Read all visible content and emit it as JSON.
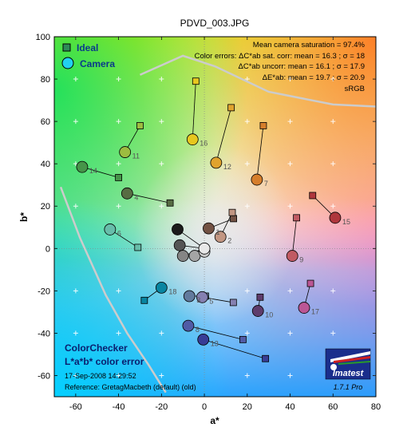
{
  "chart_data": {
    "type": "scatter",
    "title": "PDVD_003.JPG",
    "xlabel": "a*",
    "ylabel": "b*",
    "xlim": [
      -70,
      80
    ],
    "ylim": [
      -70,
      100
    ],
    "xticks": [
      -60,
      -40,
      -20,
      0,
      20,
      40,
      60,
      80
    ],
    "yticks": [
      -60,
      -40,
      -20,
      0,
      20,
      40,
      60,
      80,
      100
    ],
    "grid_marks": "plus",
    "legend": {
      "placement": "top-left",
      "items": [
        {
          "label": "Ideal",
          "marker": "square"
        },
        {
          "label": "Camera",
          "marker": "circle"
        }
      ]
    },
    "info_lines": [
      "Mean camera saturation = 97.4%",
      "Color errors:  ΔC*ab sat. corr:  mean = 16.3 ;  σ = 18",
      "ΔC*ab uncorr:  mean = 16.1 ;  σ = 17.9",
      "ΔE*ab:  mean = 19.7 ;  σ = 20.9",
      "sRGB"
    ],
    "patches": [
      {
        "label": "1",
        "ideal": [
          13.6,
          14.1
        ],
        "camera": [
          2.0,
          9.5
        ],
        "color": "#735244"
      },
      {
        "label": "2",
        "ideal": [
          13.0,
          17.0
        ],
        "camera": [
          7.5,
          5.5
        ],
        "color": "#c29682"
      },
      {
        "label": "3",
        "ideal": [
          0.5,
          -22.5
        ],
        "camera": [
          -7.0,
          -22.5
        ],
        "color": "#627a9d"
      },
      {
        "label": "4",
        "ideal": [
          -16.0,
          21.5
        ],
        "camera": [
          -36.0,
          26.0
        ],
        "color": "#576c43"
      },
      {
        "label": "5",
        "ideal": [
          13.5,
          -25.5
        ],
        "camera": [
          -1.0,
          -23.0
        ],
        "color": "#8580b1"
      },
      {
        "label": "6",
        "ideal": [
          -31.0,
          0.5
        ],
        "camera": [
          -44.0,
          9.0
        ],
        "color": "#67bdaa"
      },
      {
        "label": "7",
        "ideal": [
          27.5,
          58.0
        ],
        "camera": [
          24.5,
          32.5
        ],
        "color": "#d67e2c"
      },
      {
        "label": "8",
        "ideal": [
          18.0,
          -43.0
        ],
        "camera": [
          -7.5,
          -36.5
        ],
        "color": "#505ba6"
      },
      {
        "label": "9",
        "ideal": [
          43.0,
          14.5
        ],
        "camera": [
          41.0,
          -3.5
        ],
        "color": "#c15a63"
      },
      {
        "label": "10",
        "ideal": [
          26.0,
          -23.0
        ],
        "camera": [
          25.0,
          -29.5
        ],
        "color": "#5e3c6c"
      },
      {
        "label": "11",
        "ideal": [
          -30.0,
          58.0
        ],
        "camera": [
          -37.0,
          45.5
        ],
        "color": "#9dbc40"
      },
      {
        "label": "12",
        "ideal": [
          12.5,
          66.5
        ],
        "camera": [
          5.5,
          40.5
        ],
        "color": "#e0a32e"
      },
      {
        "label": "13",
        "ideal": [
          28.5,
          -52.0
        ],
        "camera": [
          -0.5,
          -43.0
        ],
        "color": "#383d96"
      },
      {
        "label": "14",
        "ideal": [
          -40.0,
          33.5
        ],
        "camera": [
          -57.0,
          38.5
        ],
        "color": "#469449"
      },
      {
        "label": "15",
        "ideal": [
          50.5,
          25.0
        ],
        "camera": [
          61.0,
          14.5
        ],
        "color": "#af363c"
      },
      {
        "label": "16",
        "ideal": [
          -4.0,
          79.0
        ],
        "camera": [
          -5.5,
          51.5
        ],
        "color": "#e7c71f"
      },
      {
        "label": "17",
        "ideal": [
          49.5,
          -16.5
        ],
        "camera": [
          46.5,
          -28.0
        ],
        "color": "#bb5695"
      },
      {
        "label": "18",
        "ideal": [
          -28.0,
          -24.5
        ],
        "camera": [
          -20.0,
          -18.5
        ],
        "color": "#0885a1"
      },
      {
        "label": "",
        "ideal": [
          0.0,
          0.0
        ],
        "camera": [
          -12.5,
          9.0
        ],
        "color": "#1b1b1b"
      },
      {
        "label": "",
        "ideal": [
          0.0,
          0.0
        ],
        "camera": [
          -11.5,
          1.5
        ],
        "color": "#555555"
      },
      {
        "label": "",
        "ideal": [
          0.0,
          0.0
        ],
        "camera": [
          -10.0,
          -3.5
        ],
        "color": "#858585"
      },
      {
        "label": "",
        "ideal": [
          0.0,
          0.0
        ],
        "camera": [
          -4.5,
          -3.5
        ],
        "color": "#a5a5a5"
      },
      {
        "label": "",
        "ideal": [
          0.0,
          0.0
        ],
        "camera": [
          0.0,
          -1.5
        ],
        "color": "#c8c8c8"
      },
      {
        "label": "",
        "ideal": [
          0.0,
          0.0
        ],
        "camera": [
          0.0,
          0.0
        ],
        "color": "#e8e8e8"
      }
    ],
    "gamut_boundary": [
      [
        -67,
        29
      ],
      [
        -58,
        5
      ],
      [
        -46,
        -22
      ],
      [
        -36,
        -40
      ],
      [
        -26,
        -55
      ],
      [
        -18,
        -68
      ]
    ],
    "gamut_boundary_top": [
      [
        -30,
        82
      ],
      [
        -10,
        91
      ],
      [
        5,
        86
      ],
      [
        30,
        74
      ],
      [
        60,
        68
      ],
      [
        80,
        67
      ]
    ]
  },
  "labels": {
    "colorchecker_title": "ColorChecker",
    "colorchecker_subtitle": "L*a*b* color error",
    "date": "17-Sep-2008 14:29:52",
    "reference": "Reference: GretagMacbeth (default) (old)",
    "logo_name": "Imatest",
    "logo_version": "1.7.1  Pro"
  },
  "colors": {
    "gamut_line": "#cccccc",
    "ideal_edge": "#000000",
    "camera_edge": "#000000"
  }
}
